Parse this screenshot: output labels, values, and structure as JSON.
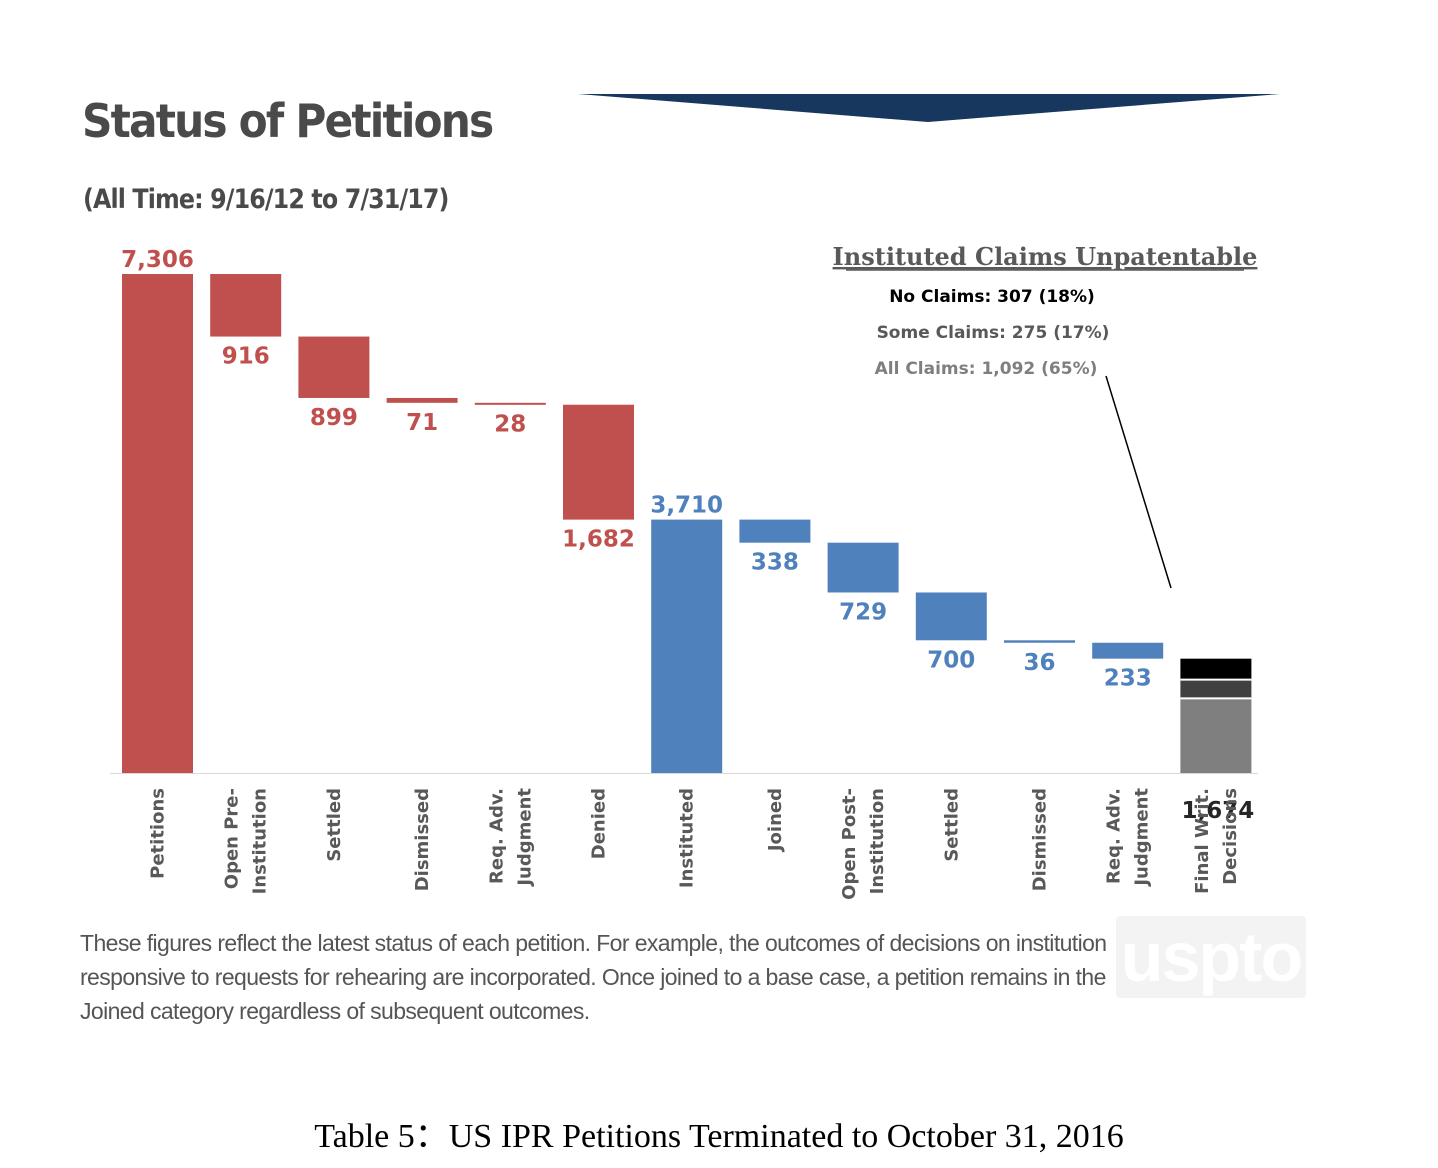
{
  "header": {
    "title": "Status of Petitions",
    "subtitle": "(All Time: 9/16/12 to 7/31/17)"
  },
  "footnote": "These figures reflect the latest status of each petition. For example, the outcomes of decisions on institution responsive to requests for rehearing are incorporated. Once joined to a base case, a petition remains in the Joined category regardless of subsequent outcomes.",
  "logo_text": "uspto",
  "table_caption": "Table 5：US IPR Petitions Terminated to October 31, 2016",
  "colors": {
    "red": "#c0504d",
    "blue": "#4f81bd",
    "final_all": "#7f7f7f",
    "final_some": "#404040",
    "final_none": "#000000",
    "banner": "#17375e"
  },
  "chart_data": {
    "type": "bar",
    "subtype": "waterfall",
    "categories": [
      "Petitions",
      "Open Pre-\nInstitution",
      "Settled",
      "Dismissed",
      "Req. Adv.\nJudgment",
      "Denied",
      "Instituted",
      "Joined",
      "Open Post-\nInstitution",
      "Settled",
      "Dismissed",
      "Req. Adv.\nJudgment",
      "Final Writ.\nDecisions"
    ],
    "values": [
      7306,
      916,
      899,
      71,
      28,
      1682,
      3710,
      338,
      729,
      700,
      36,
      233,
      1674
    ],
    "labels": [
      "7,306",
      "916",
      "899",
      "71",
      "28",
      "1,682",
      "3,710",
      "338",
      "729",
      "700",
      "36",
      "233",
      "1,674"
    ],
    "kinds": [
      "total",
      "decrease",
      "decrease",
      "decrease",
      "decrease",
      "decrease",
      "total",
      "decrease",
      "decrease",
      "decrease",
      "decrease",
      "decrease",
      "total"
    ],
    "colors": [
      "red",
      "red",
      "red",
      "red",
      "red",
      "red",
      "blue",
      "blue",
      "blue",
      "blue",
      "blue",
      "blue",
      "stacked"
    ],
    "ylim": [
      0,
      7306
    ],
    "grid": false,
    "final_breakdown": [
      {
        "name": "All Claims",
        "value": 1092,
        "label": "All Claims: 1,092 (65%)",
        "color": "final_all"
      },
      {
        "name": "Some Claims",
        "value": 275,
        "label": "Some Claims: 275 (17%)",
        "color": "final_some"
      },
      {
        "name": "No Claims",
        "value": 307,
        "label": "No Claims: 307 (18%)",
        "color": "final_none"
      }
    ],
    "annotation": {
      "title": "Instituted Claims Unpatentable",
      "lines": [
        "No Claims: 307 (18%)",
        "Some Claims: 275 (17%)",
        "All Claims: 1,092 (65%)"
      ]
    }
  }
}
